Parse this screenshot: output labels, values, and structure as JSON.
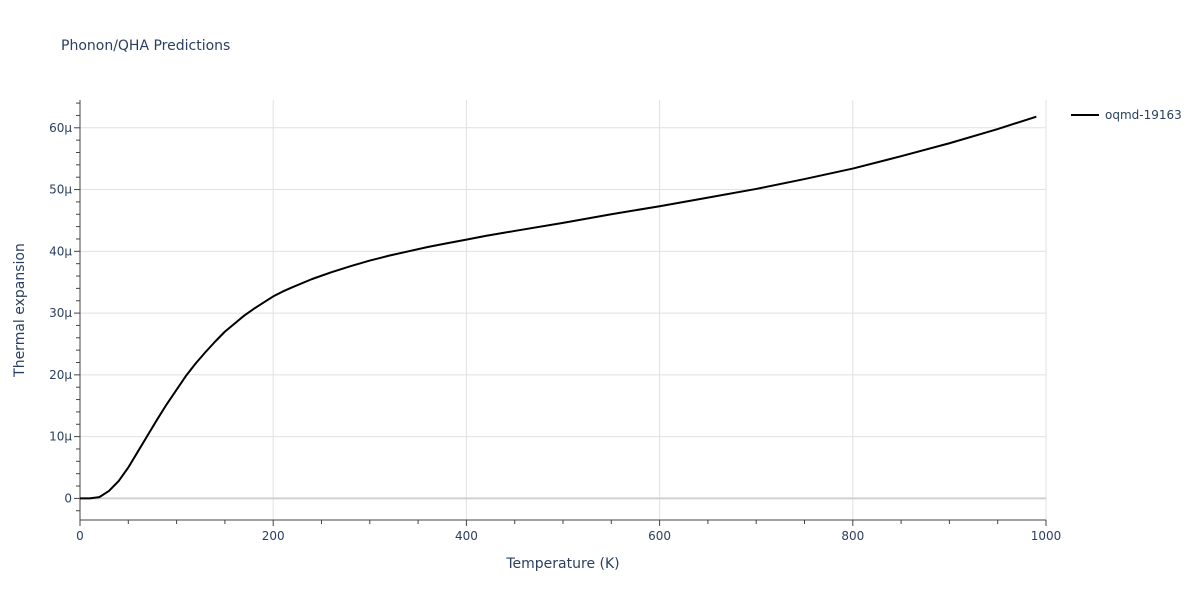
{
  "chart_data": {
    "type": "line",
    "title": "Phonon/QHA Predictions",
    "xlabel": "Temperature (K)",
    "ylabel": "Thermal expansion",
    "xlim": [
      0,
      1000
    ],
    "ylim": [
      -3.5e-06,
      6.45e-05
    ],
    "x_ticks": [
      0,
      200,
      400,
      600,
      800,
      1000
    ],
    "x_tick_labels": [
      "0",
      "200",
      "400",
      "600",
      "800",
      "1000"
    ],
    "y_ticks": [
      0,
      1e-05,
      2e-05,
      3e-05,
      4e-05,
      5e-05,
      6e-05
    ],
    "y_tick_labels": [
      "0",
      "10μ",
      "20μ",
      "30μ",
      "40μ",
      "50μ",
      "60μ"
    ],
    "grid": true,
    "legend_position": "top-right",
    "series": [
      {
        "name": "oqmd-19163",
        "color": "#000000",
        "x": [
          0,
          10,
          20,
          30,
          40,
          50,
          60,
          70,
          80,
          90,
          100,
          110,
          120,
          130,
          140,
          150,
          160,
          170,
          180,
          190,
          200,
          210,
          220,
          240,
          260,
          280,
          300,
          320,
          340,
          360,
          380,
          400,
          420,
          450,
          500,
          550,
          600,
          650,
          700,
          750,
          800,
          850,
          900,
          950,
          990
        ],
        "y": [
          0,
          0,
          2e-07,
          1.2e-06,
          2.8e-06,
          5e-06,
          7.6e-06,
          1.02e-05,
          1.28e-05,
          1.53e-05,
          1.76e-05,
          1.99e-05,
          2.19e-05,
          2.37e-05,
          2.54e-05,
          2.7e-05,
          2.83e-05,
          2.96e-05,
          3.07e-05,
          3.17e-05,
          3.27e-05,
          3.35e-05,
          3.42e-05,
          3.55e-05,
          3.66e-05,
          3.76e-05,
          3.85e-05,
          3.93e-05,
          4e-05,
          4.07e-05,
          4.13e-05,
          4.19e-05,
          4.25e-05,
          4.33e-05,
          4.46e-05,
          4.6e-05,
          4.73e-05,
          4.87e-05,
          5.01e-05,
          5.17e-05,
          5.34e-05,
          5.54e-05,
          5.75e-05,
          5.98e-05,
          6.18e-05
        ]
      }
    ]
  }
}
